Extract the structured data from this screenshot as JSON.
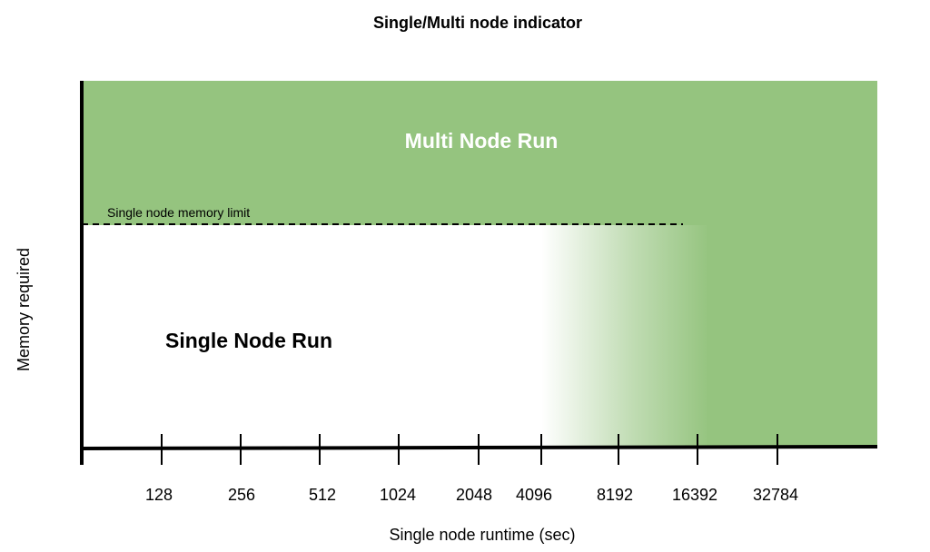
{
  "title": "Single/Multi node indicator",
  "regions": {
    "multi_label": "Multi Node Run",
    "single_label": "Single Node Run"
  },
  "limit_label": "Single node memory limit",
  "x_axis": {
    "label": "Single node runtime (sec)",
    "ticks": [
      "128",
      "256",
      "512",
      "1024",
      "2048",
      "4096",
      "8192",
      "16392",
      "32784"
    ]
  },
  "y_axis": {
    "label": "Memory required"
  },
  "colors": {
    "multi_node": "#95c47f",
    "axis": "#000000",
    "background": "#ffffff"
  }
}
